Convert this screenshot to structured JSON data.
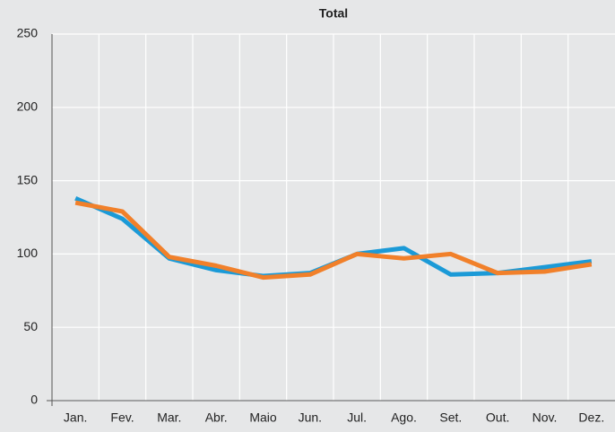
{
  "chart_data": {
    "type": "line",
    "title": "Total",
    "categories": [
      "Jan.",
      "Fev.",
      "Mar.",
      "Abr.",
      "Maio",
      "Jun.",
      "Jul.",
      "Ago.",
      "Set.",
      "Out.",
      "Nov.",
      "Dez."
    ],
    "series": [
      {
        "color": "#1b9ad7",
        "values": [
          138,
          124,
          97,
          89,
          85,
          87,
          100,
          104,
          86,
          87,
          91,
          95
        ]
      },
      {
        "color": "#f1802a",
        "values": [
          135,
          129,
          98,
          92,
          84,
          86,
          100,
          97,
          100,
          87,
          88,
          93
        ]
      }
    ],
    "ylim": [
      0,
      250
    ],
    "yticks": [
      0,
      50,
      100,
      150,
      200,
      250
    ],
    "grid": true
  }
}
